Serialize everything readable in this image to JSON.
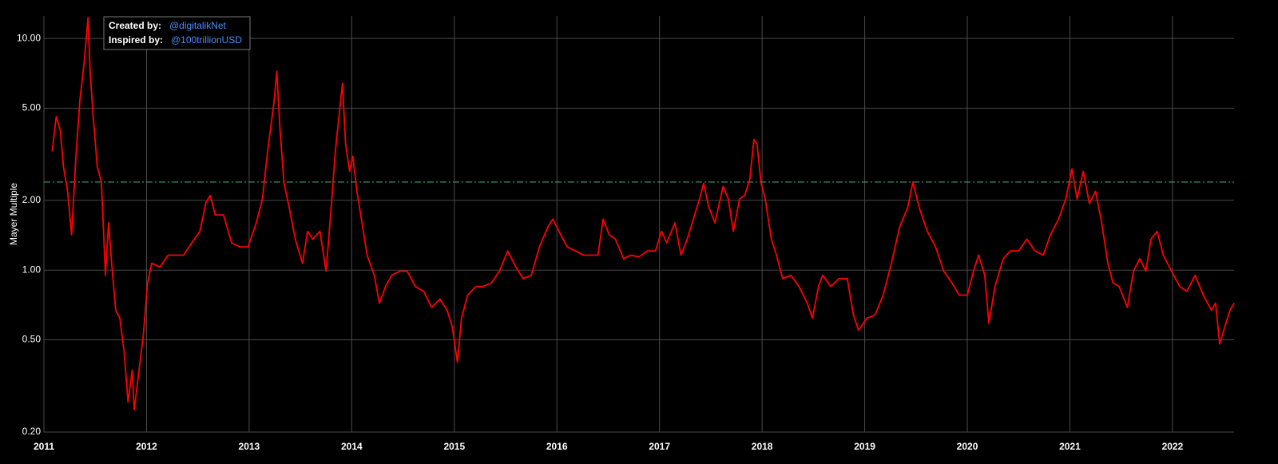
{
  "chart_data": {
    "type": "line",
    "y_label": "Mayer Multiple",
    "annotations": {
      "created_label": "Created by:",
      "created_handle": "@digitalikNet",
      "inspired_label": "Inspired by:",
      "inspired_handle": "@100trillionUSD"
    },
    "log_y": true,
    "grid": true,
    "color": "#ff0000",
    "threshold": 2.4,
    "threshold_color": "#3f9a63",
    "xlim": [
      2011,
      2022.6
    ],
    "xticks": [
      2011,
      2012,
      2013,
      2014,
      2015,
      2016,
      2017,
      2018,
      2019,
      2020,
      2021,
      2022
    ],
    "ylim": [
      0.2,
      12.5
    ],
    "yticks": [
      {
        "value": 0.2,
        "label": "0.20"
      },
      {
        "value": 0.5,
        "label": "0.50"
      },
      {
        "value": 1,
        "label": "1.00"
      },
      {
        "value": 2,
        "label": "2.00"
      },
      {
        "value": 5,
        "label": "5.00"
      },
      {
        "value": 10,
        "label": "10.00"
      }
    ],
    "x": [
      2011.08,
      2011.12,
      2011.16,
      2011.19,
      2011.23,
      2011.27,
      2011.31,
      2011.35,
      2011.39,
      2011.43,
      2011.45,
      2011.48,
      2011.52,
      2011.56,
      2011.6,
      2011.63,
      2011.66,
      2011.7,
      2011.74,
      2011.78,
      2011.82,
      2011.86,
      2011.88,
      2011.93,
      2011.97,
      2012.01,
      2012.05,
      2012.13,
      2012.21,
      2012.29,
      2012.36,
      2012.44,
      2012.52,
      2012.58,
      2012.62,
      2012.67,
      2012.75,
      2012.83,
      2012.91,
      2012.99,
      2013.07,
      2013.13,
      2013.18,
      2013.24,
      2013.27,
      2013.3,
      2013.34,
      2013.39,
      2013.45,
      2013.52,
      2013.57,
      2013.62,
      2013.69,
      2013.75,
      2013.8,
      2013.84,
      2013.88,
      2013.91,
      2013.94,
      2013.98,
      2014.01,
      2014.05,
      2014.1,
      2014.15,
      2014.22,
      2014.27,
      2014.33,
      2014.39,
      2014.47,
      2014.54,
      2014.62,
      2014.7,
      2014.78,
      2014.86,
      2014.93,
      2014.98,
      2015.03,
      2015.07,
      2015.13,
      2015.21,
      2015.28,
      2015.36,
      2015.44,
      2015.52,
      2015.6,
      2015.67,
      2015.75,
      2015.83,
      2015.91,
      2015.96,
      2016.02,
      2016.1,
      2016.18,
      2016.26,
      2016.34,
      2016.4,
      2016.45,
      2016.51,
      2016.57,
      2016.65,
      2016.72,
      2016.8,
      2016.88,
      2016.96,
      2017.02,
      2017.07,
      2017.15,
      2017.21,
      2017.27,
      2017.33,
      2017.39,
      2017.43,
      2017.48,
      2017.54,
      2017.62,
      2017.67,
      2017.72,
      2017.78,
      2017.83,
      2017.88,
      2017.92,
      2017.95,
      2017.99,
      2018.03,
      2018.09,
      2018.14,
      2018.2,
      2018.28,
      2018.36,
      2018.44,
      2018.49,
      2018.55,
      2018.59,
      2018.67,
      2018.75,
      2018.83,
      2018.89,
      2018.94,
      2019.02,
      2019.1,
      2019.18,
      2019.26,
      2019.34,
      2019.42,
      2019.47,
      2019.53,
      2019.61,
      2019.69,
      2019.77,
      2019.85,
      2019.92,
      2020.0,
      2020.06,
      2020.11,
      2020.17,
      2020.21,
      2020.27,
      2020.35,
      2020.42,
      2020.5,
      2020.58,
      2020.66,
      2020.74,
      2020.81,
      2020.89,
      2020.96,
      2021.02,
      2021.07,
      2021.13,
      2021.19,
      2021.25,
      2021.31,
      2021.37,
      2021.42,
      2021.48,
      2021.56,
      2021.62,
      2021.68,
      2021.74,
      2021.79,
      2021.85,
      2021.91,
      2021.99,
      2022.07,
      2022.14,
      2022.22,
      2022.3,
      2022.38,
      2022.42,
      2022.46,
      2022.51,
      2022.56,
      2022.6
    ],
    "values": [
      3.25,
      4.6,
      4.0,
      2.8,
      2.2,
      1.42,
      3.0,
      5.4,
      7.7,
      12.3,
      7.2,
      4.6,
      2.8,
      2.4,
      0.95,
      1.6,
      1.07,
      0.67,
      0.62,
      0.45,
      0.27,
      0.37,
      0.25,
      0.38,
      0.53,
      0.88,
      1.07,
      1.03,
      1.16,
      1.16,
      1.16,
      1.31,
      1.47,
      1.96,
      2.1,
      1.73,
      1.73,
      1.31,
      1.26,
      1.26,
      1.6,
      2.03,
      3.25,
      5.2,
      7.2,
      4.1,
      2.37,
      1.87,
      1.36,
      1.07,
      1.47,
      1.36,
      1.47,
      0.99,
      1.87,
      3.25,
      4.8,
      6.4,
      3.5,
      2.67,
      3.1,
      2.2,
      1.6,
      1.16,
      0.95,
      0.72,
      0.85,
      0.95,
      0.99,
      0.99,
      0.85,
      0.81,
      0.69,
      0.75,
      0.67,
      0.57,
      0.4,
      0.62,
      0.78,
      0.85,
      0.85,
      0.88,
      0.99,
      1.21,
      1.03,
      0.92,
      0.95,
      1.26,
      1.53,
      1.66,
      1.47,
      1.26,
      1.21,
      1.16,
      1.16,
      1.16,
      1.66,
      1.42,
      1.36,
      1.12,
      1.16,
      1.14,
      1.21,
      1.21,
      1.47,
      1.31,
      1.6,
      1.16,
      1.36,
      1.66,
      2.03,
      2.37,
      1.87,
      1.6,
      2.3,
      2.03,
      1.47,
      2.03,
      2.1,
      2.46,
      3.66,
      3.5,
      2.37,
      2.03,
      1.36,
      1.16,
      0.92,
      0.95,
      0.85,
      0.72,
      0.62,
      0.85,
      0.95,
      0.85,
      0.92,
      0.92,
      0.64,
      0.55,
      0.62,
      0.64,
      0.78,
      1.07,
      1.53,
      1.87,
      2.4,
      1.87,
      1.47,
      1.26,
      0.99,
      0.88,
      0.78,
      0.78,
      0.99,
      1.16,
      0.95,
      0.59,
      0.85,
      1.12,
      1.21,
      1.21,
      1.36,
      1.21,
      1.16,
      1.42,
      1.66,
      2.03,
      2.73,
      2.03,
      2.67,
      1.94,
      2.19,
      1.6,
      1.07,
      0.88,
      0.85,
      0.69,
      0.99,
      1.12,
      0.99,
      1.36,
      1.47,
      1.16,
      0.99,
      0.85,
      0.81,
      0.95,
      0.78,
      0.67,
      0.72,
      0.48,
      0.57,
      0.67,
      0.72
    ]
  }
}
